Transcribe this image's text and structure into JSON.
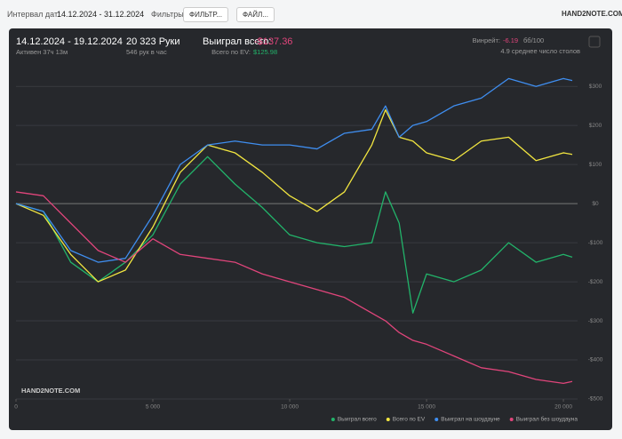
{
  "toolbar": {
    "date_label": "Интервал дат:",
    "date_range": "14.12.2024 - 31.12.2024",
    "filters_label": "Фильтры:",
    "filter_button": "ФИЛЬТР...",
    "file_button": "ФАЙЛ...",
    "logo": "HAND2NOTE.COM"
  },
  "summary": {
    "period": "14.12.2024 - 19.12.2024",
    "active": "Активен 37ч 13м",
    "hands": "20 323 Руки",
    "rate": "546 рук в час",
    "won_label": "Выиграл всего:",
    "won_value": "-$137.36",
    "ev_label": "Всего по EV:",
    "ev_value": "$125.98",
    "winrate_label": "Винрейт:",
    "winrate_value": "-6.19",
    "winrate_unit": "бб/100",
    "tables": "4.9 среднее число столов",
    "watermark": "HAND2NOTE.COM"
  },
  "chart_data": {
    "type": "line",
    "legend": "bottom-right",
    "grid": true,
    "x": [
      0,
      1000,
      2000,
      3000,
      4000,
      5000,
      6000,
      7000,
      8000,
      9000,
      10000,
      11000,
      12000,
      13000,
      13500,
      14000,
      14500,
      15000,
      16000,
      17000,
      18000,
      19000,
      20000,
      20323
    ],
    "series": [
      {
        "name": "Выиграл всего",
        "color": "#22b36a",
        "values": [
          0,
          -20,
          -150,
          -200,
          -150,
          -80,
          50,
          120,
          50,
          -10,
          -80,
          -100,
          -110,
          -100,
          30,
          -50,
          -280,
          -180,
          -200,
          -170,
          -100,
          -150,
          -130,
          -137
        ]
      },
      {
        "name": "Всего по EV",
        "color": "#f2e640",
        "values": [
          0,
          -30,
          -130,
          -200,
          -170,
          -60,
          80,
          150,
          130,
          80,
          20,
          -20,
          30,
          150,
          240,
          170,
          160,
          130,
          110,
          160,
          170,
          110,
          130,
          126
        ]
      },
      {
        "name": "Выиграл на шоудауне",
        "color": "#3f8ef0",
        "values": [
          0,
          -20,
          -120,
          -150,
          -140,
          -30,
          100,
          150,
          160,
          150,
          150,
          140,
          180,
          190,
          250,
          170,
          200,
          210,
          250,
          270,
          320,
          300,
          320,
          315
        ]
      },
      {
        "name": "Выиграл без шоудауна",
        "color": "#e0457b",
        "values": [
          30,
          20,
          -50,
          -120,
          -150,
          -90,
          -130,
          -140,
          -150,
          -180,
          -200,
          -220,
          -240,
          -280,
          -300,
          -330,
          -350,
          -360,
          -390,
          -420,
          -430,
          -450,
          -460,
          -455
        ]
      }
    ],
    "xlim": [
      0,
      20323
    ],
    "ylim": [
      -500,
      330
    ],
    "xticks": [
      0,
      {
        "value": 5000,
        "label": "5 000"
      },
      {
        "value": 10000,
        "label": "10 000"
      },
      {
        "value": 15000,
        "label": "15 000"
      },
      {
        "value": 20000,
        "label": "20 000"
      }
    ],
    "yticks": [
      {
        "value": -500,
        "label": "-$500"
      },
      {
        "value": -400,
        "label": "-$400"
      },
      {
        "value": -300,
        "label": "-$300"
      },
      {
        "value": -200,
        "label": "-$200"
      },
      {
        "value": -100,
        "label": "-$100"
      },
      {
        "value": 0,
        "label": "$0"
      },
      {
        "value": 100,
        "label": "$100"
      },
      {
        "value": 200,
        "label": "$200"
      },
      {
        "value": 300,
        "label": "$300"
      }
    ]
  }
}
